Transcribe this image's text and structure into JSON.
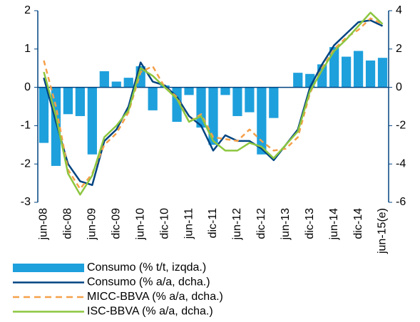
{
  "chart_data": {
    "type": "bar-line",
    "categories": [
      "jun-08",
      null,
      "dic-08",
      null,
      "jun-09",
      null,
      "dic-09",
      null,
      "jun-10",
      null,
      "dic-10",
      null,
      "jun-11",
      null,
      "dic-11",
      null,
      "jun-12",
      null,
      "dic-12",
      null,
      "jun-13",
      null,
      "dic-13",
      null,
      "jun-14",
      null,
      "dic-14",
      null,
      "jun-15(e)"
    ],
    "series": [
      {
        "name": "Consumo (% t/t, izqda.)",
        "type": "bar",
        "color": "#1ea0dc",
        "axis": "y",
        "values": [
          -1.45,
          -2.05,
          -0.7,
          -0.75,
          -1.75,
          0.42,
          0.15,
          0.25,
          0.55,
          -0.6,
          0.05,
          -0.9,
          -0.2,
          -1.05,
          -1.5,
          -0.2,
          -0.75,
          -0.65,
          -1.75,
          -0.8,
          0.0,
          0.38,
          0.35,
          0.6,
          1.05,
          0.8,
          0.95,
          0.7,
          0.77
        ]
      },
      {
        "name": "Consumo (% a/a, dcha.)",
        "type": "line",
        "color": "#004481",
        "dash": false,
        "axis": "y2",
        "values": [
          0.5,
          -1.8,
          -4.0,
          -4.9,
          -5.1,
          -2.8,
          -2.2,
          -1.0,
          1.3,
          0.3,
          0.1,
          -0.5,
          -1.5,
          -2.0,
          -3.3,
          -2.5,
          -2.8,
          -2.8,
          -3.2,
          -3.8,
          -3.0,
          -2.2,
          0.0,
          1.2,
          2.2,
          2.8,
          3.4,
          3.5,
          3.2
        ]
      },
      {
        "name": "MICC-BBVA (% a/a, dcha.)",
        "type": "line",
        "color": "#f5a04a",
        "dash": true,
        "axis": "y2",
        "values": [
          1.4,
          -1.0,
          -4.3,
          -5.3,
          -4.5,
          -3.0,
          -2.4,
          -1.3,
          0.8,
          1.1,
          0.0,
          -0.5,
          -1.8,
          -1.4,
          -2.6,
          -2.7,
          -2.8,
          -2.2,
          -2.8,
          -3.3,
          -3.2,
          -2.6,
          -0.3,
          1.0,
          2.0,
          2.6,
          3.0,
          3.6,
          3.3
        ]
      },
      {
        "name": "ISC-BBVA (% a/a, dcha.)",
        "type": "line",
        "color": "#8cc63f",
        "dash": false,
        "axis": "y2",
        "values": [
          0.8,
          -1.5,
          -4.5,
          -5.6,
          -4.6,
          -2.6,
          -2.0,
          -1.2,
          1.0,
          0.6,
          0.0,
          -0.6,
          -1.8,
          -1.5,
          -2.8,
          -3.3,
          -3.3,
          -2.9,
          -3.1,
          -3.7,
          -3.0,
          -2.3,
          -0.2,
          0.9,
          1.9,
          2.5,
          3.2,
          3.9,
          3.3
        ]
      }
    ],
    "ylim": [
      -3,
      2
    ],
    "yticks": [
      2,
      1,
      0,
      -1,
      -2,
      -3
    ],
    "y2lim": [
      -6,
      4
    ],
    "y2ticks": [
      4,
      2,
      0,
      -2,
      -4,
      -6
    ],
    "legend": "bottom"
  }
}
